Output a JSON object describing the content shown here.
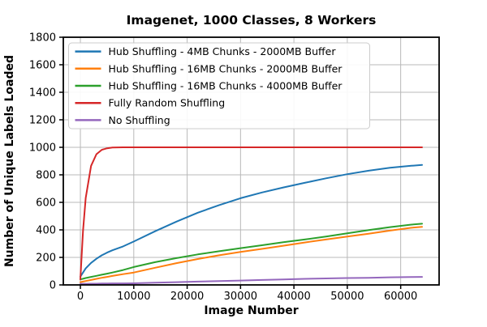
{
  "chart_data": {
    "type": "line",
    "title": "Imagenet, 1000 Classes, 8 Workers",
    "xlabel": "Image Number",
    "ylabel": "Number of Unique Labels Loaded",
    "xlim": [
      -3200,
      67200
    ],
    "ylim": [
      0,
      1800
    ],
    "xticks": [
      0,
      10000,
      20000,
      30000,
      40000,
      50000,
      60000
    ],
    "yticks": [
      0,
      200,
      400,
      600,
      800,
      1000,
      1200,
      1400,
      1600,
      1800
    ],
    "grid": true,
    "grid_color": "#b8b8b8",
    "legend_position": "upper-left",
    "x": [
      0,
      500,
      1000,
      2000,
      3000,
      4000,
      5000,
      6000,
      8000,
      10000,
      14000,
      18000,
      22000,
      26000,
      30000,
      34000,
      38000,
      42000,
      46000,
      50000,
      54000,
      58000,
      62000,
      64000
    ],
    "series": [
      {
        "name": "Hub Shuffling - 4MB Chunks - 2000MB Buffer",
        "color": "#1f77b4",
        "values": [
          60,
          90,
          120,
          160,
          190,
          215,
          235,
          252,
          280,
          315,
          390,
          460,
          525,
          580,
          630,
          672,
          708,
          742,
          775,
          805,
          830,
          852,
          866,
          872
        ]
      },
      {
        "name": "Hub Shuffling - 16MB Chunks - 2000MB Buffer",
        "color": "#ff7f0e",
        "values": [
          20,
          24,
          28,
          36,
          44,
          52,
          58,
          65,
          78,
          90,
          125,
          158,
          188,
          215,
          240,
          262,
          285,
          308,
          330,
          352,
          372,
          395,
          415,
          422
        ]
      },
      {
        "name": "Hub Shuffling - 16MB Chunks - 4000MB Buffer",
        "color": "#2ca02c",
        "values": [
          40,
          45,
          50,
          58,
          66,
          74,
          82,
          90,
          108,
          130,
          165,
          195,
          222,
          245,
          267,
          288,
          310,
          330,
          352,
          375,
          398,
          420,
          438,
          445
        ]
      },
      {
        "name": "Fully Random Shuffling",
        "color": "#d62728",
        "values": [
          40,
          394,
          632,
          865,
          950,
          982,
          993,
          998,
          1000,
          1000,
          1000,
          1000,
          1000,
          1000,
          1000,
          1000,
          1000,
          1000,
          1000,
          1000,
          1000,
          1000,
          1000,
          1000
        ]
      },
      {
        "name": "No Shuffling",
        "color": "#9467bd",
        "values": [
          8,
          8,
          8,
          9,
          9,
          10,
          10,
          11,
          11,
          12,
          16,
          20,
          24,
          28,
          32,
          36,
          40,
          44,
          47,
          50,
          52,
          55,
          57,
          58
        ]
      }
    ]
  }
}
